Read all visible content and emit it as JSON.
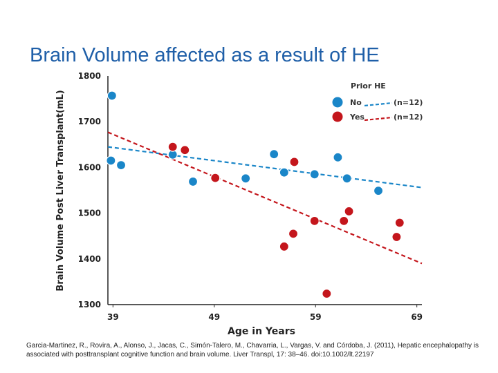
{
  "slide": {
    "title": "Brain Volume affected as a result of HE",
    "citation": "Garcia-Martinez, R., Rovira, A., Alonso, J., Jacas, C., Simón-Talero, M., Chavarria, L., Vargas, V. and Córdoba, J. (2011), Hepatic encephalopathy is associated with posttransplant cognitive function and brain volume. Liver Transpl, 17: 38–46. doi:10.1002/lt.22197"
  },
  "colors": {
    "no": "#1a86c8",
    "yes": "#c4161c",
    "axis": "#222222",
    "grid": "#d9d9d9"
  },
  "chart_data": {
    "type": "scatter",
    "xlabel": "Age in Years",
    "ylabel": "Brain Volume Post Liver Transplant(mL)",
    "x_ticks": [
      39,
      49,
      59,
      69
    ],
    "y_ticks": [
      1300,
      1400,
      1500,
      1600,
      1700,
      1800
    ],
    "xlim": [
      38.5,
      69.5
    ],
    "ylim": [
      1300,
      1800
    ],
    "grid": false,
    "legend": {
      "title": "Prior HE",
      "placement": "top-right",
      "entries": [
        {
          "label": "No",
          "n": "(n=12)",
          "series": 0
        },
        {
          "label": "Yes",
          "n": "(n=12)",
          "series": 1
        }
      ]
    },
    "series": [
      {
        "name": "No",
        "points": [
          [
            38.9,
            1757
          ],
          [
            38.8,
            1615
          ],
          [
            39.8,
            1605
          ],
          [
            44.9,
            1628
          ],
          [
            46.9,
            1569
          ],
          [
            52.1,
            1576
          ],
          [
            54.9,
            1629
          ],
          [
            55.9,
            1589
          ],
          [
            58.9,
            1585
          ],
          [
            61.2,
            1622
          ],
          [
            62.1,
            1576
          ],
          [
            65.2,
            1549
          ]
        ],
        "trend": [
          [
            38.5,
            1645
          ],
          [
            69.5,
            1556
          ]
        ]
      },
      {
        "name": "Yes",
        "points": [
          [
            44.9,
            1645
          ],
          [
            46.1,
            1638
          ],
          [
            49.1,
            1577
          ],
          [
            55.9,
            1427
          ],
          [
            56.8,
            1455
          ],
          [
            56.9,
            1612
          ],
          [
            58.9,
            1483
          ],
          [
            60.1,
            1324
          ],
          [
            61.8,
            1483
          ],
          [
            62.3,
            1504
          ],
          [
            67.0,
            1448
          ],
          [
            67.3,
            1479
          ]
        ],
        "trend": [
          [
            38.5,
            1677
          ],
          [
            69.5,
            1390
          ]
        ]
      }
    ]
  }
}
